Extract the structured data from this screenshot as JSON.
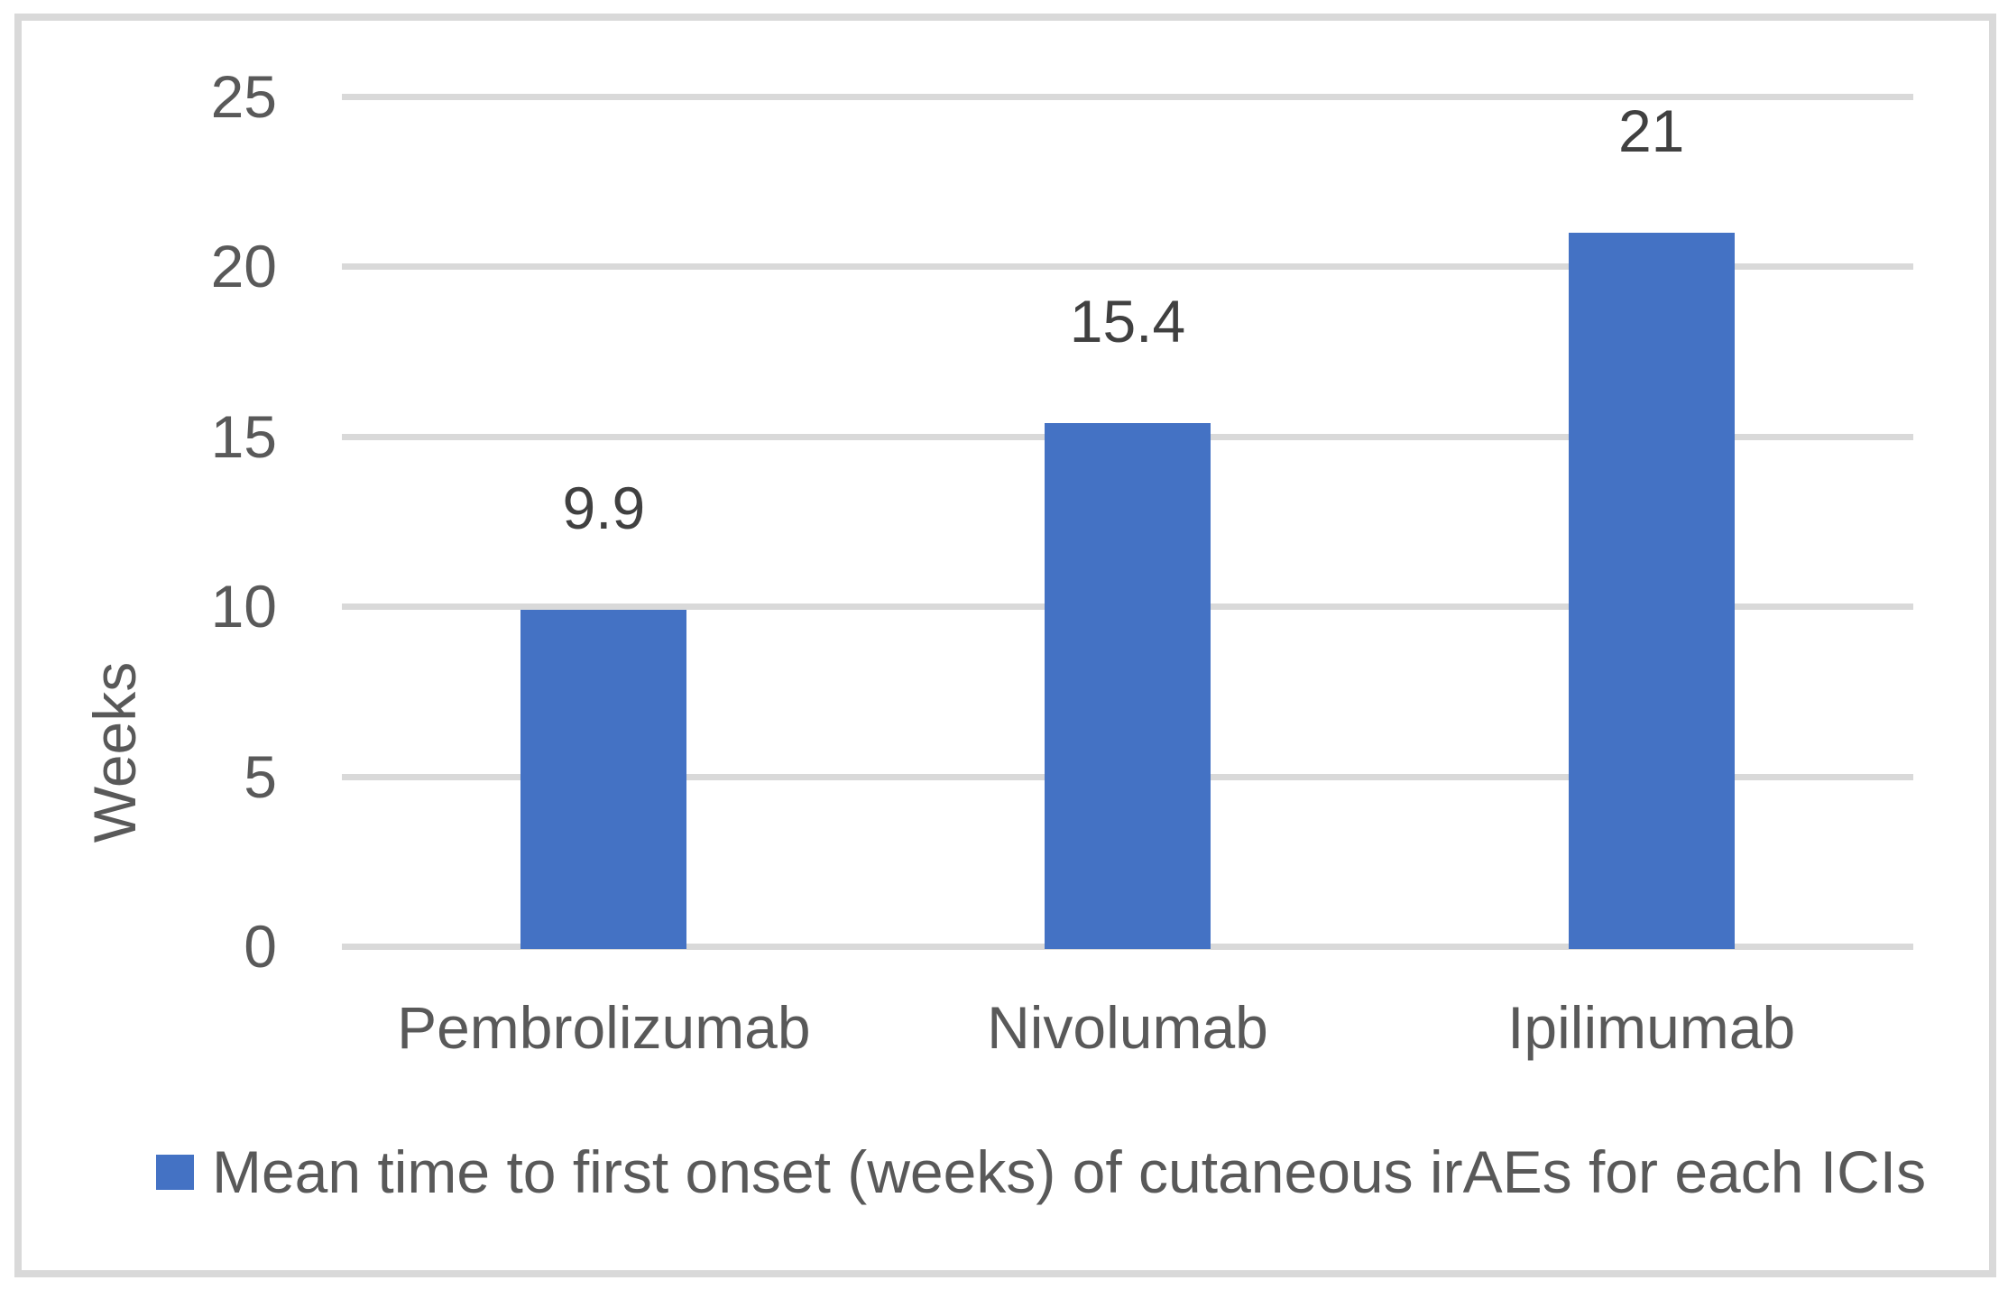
{
  "chart_data": {
    "type": "bar",
    "categories": [
      "Pembrolizumab",
      "Nivolumab",
      "Ipilimumab"
    ],
    "values": [
      9.9,
      15.4,
      21
    ],
    "data_labels": [
      "9.9",
      "15.4",
      "21"
    ],
    "title": "",
    "xlabel": "",
    "ylabel": "Weeks",
    "ylim": [
      0,
      25
    ],
    "yticks": [
      25,
      20,
      15,
      10,
      5,
      0
    ],
    "grid": true,
    "legend": {
      "position": "bottom",
      "entries": [
        "Mean time to first onset (weeks) of cutaneous irAEs for each ICIs"
      ]
    },
    "colors": {
      "bar": "#4472C4",
      "gridline": "#D9D9D9",
      "frame_border": "#D9D9D9",
      "axis_text": "#595959",
      "data_label_text": "#404040",
      "background": "#FFFFFF"
    }
  }
}
